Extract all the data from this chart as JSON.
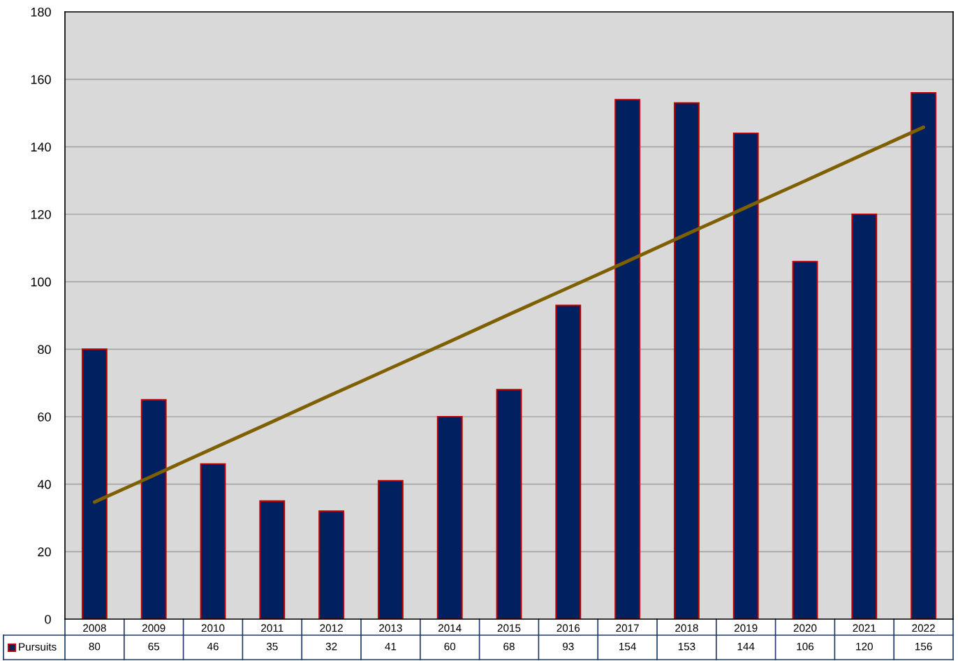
{
  "chart_data": {
    "type": "bar",
    "categories": [
      "2008",
      "2009",
      "2010",
      "2011",
      "2012",
      "2013",
      "2014",
      "2015",
      "2016",
      "2017",
      "2018",
      "2019",
      "2020",
      "2021",
      "2022"
    ],
    "series": [
      {
        "name": "Pursuits",
        "color": "#002060",
        "values": [
          80,
          65,
          46,
          35,
          32,
          41,
          60,
          68,
          93,
          154,
          153,
          144,
          106,
          120,
          156
        ],
        "value_labels": [
          "80",
          "65",
          "46",
          "35",
          "32",
          "41",
          "60",
          "68",
          "93",
          "154",
          "153",
          "144",
          "106",
          "120",
          "156"
        ]
      },
      {
        "type": "line",
        "color": "#7f6000",
        "values": [
          34.7,
          42.6,
          50.6,
          58.5,
          66.5,
          74.4,
          82.3,
          90.3,
          98.2,
          106.1,
          114.1,
          122,
          129.9,
          137.9,
          145.8
        ]
      }
    ],
    "ylim": [
      0,
      180
    ],
    "yticks": [
      0,
      20,
      40,
      60,
      80,
      100,
      120,
      140,
      160,
      180
    ],
    "grid": "y"
  }
}
